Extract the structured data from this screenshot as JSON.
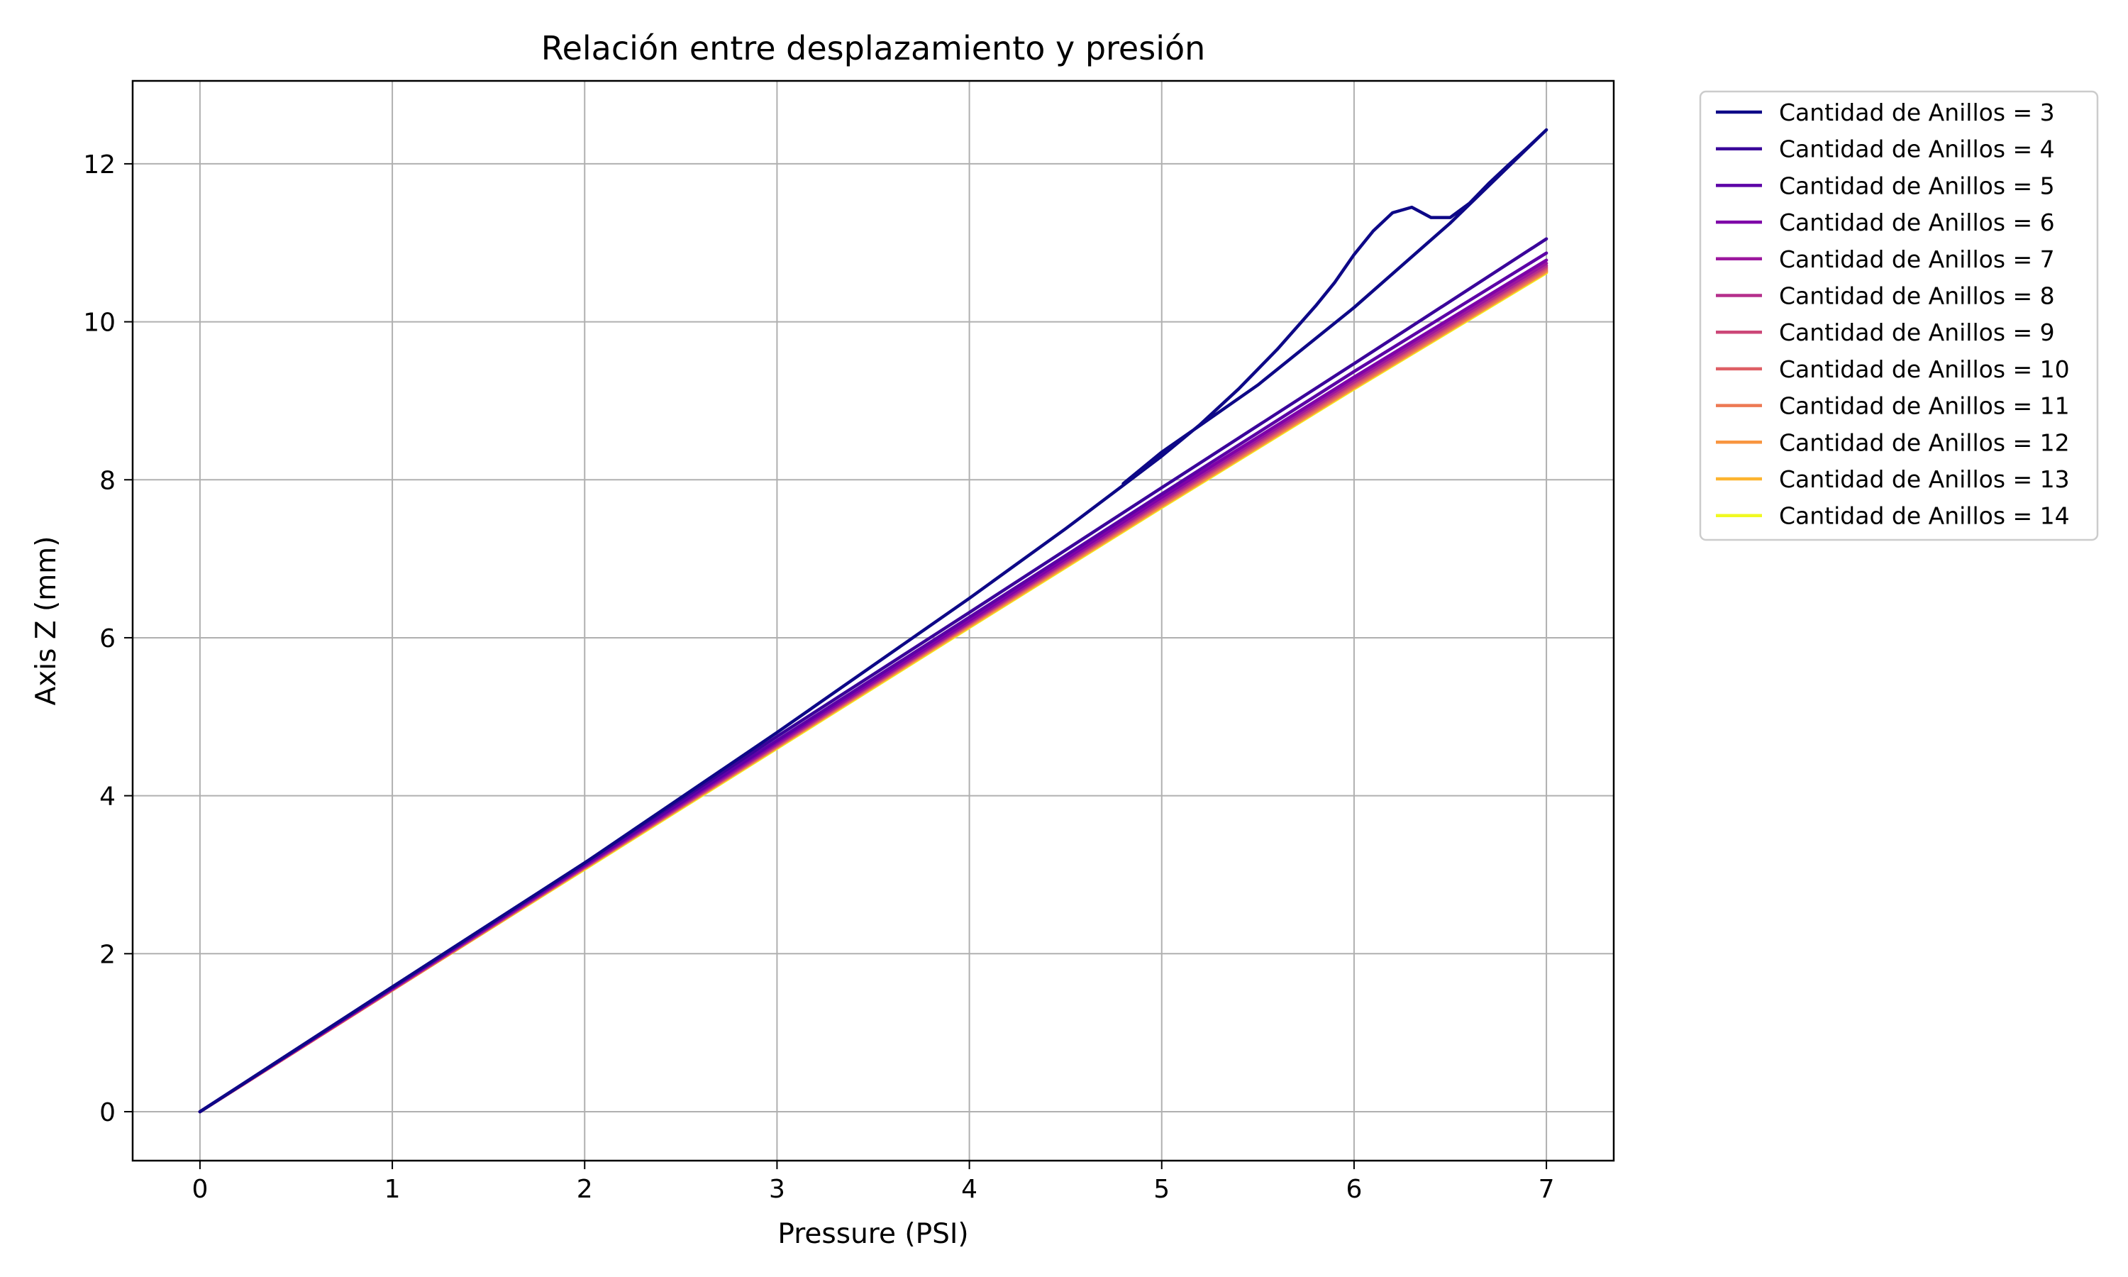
{
  "chart_data": {
    "type": "line",
    "title": "Relación entre desplazamiento y presión",
    "xlabel": "Pressure (PSI)",
    "ylabel": "Axis Z (mm)",
    "xlim": [
      -0.35,
      7.35
    ],
    "ylim": [
      -0.62,
      13.05
    ],
    "xticks": [
      0,
      1,
      2,
      3,
      4,
      5,
      6,
      7
    ],
    "yticks": [
      0,
      2,
      4,
      6,
      8,
      10,
      12
    ],
    "grid": true,
    "legend_position": "outside-top-right",
    "series": [
      {
        "name": "Cantidad de Anillos = 3",
        "color": "#0d0887",
        "x": [
          0,
          1,
          2,
          3,
          4,
          4.5,
          4.8,
          5.0,
          5.2,
          5.4,
          5.6,
          5.8,
          5.9,
          6.0,
          6.1,
          6.2,
          6.3,
          6.4,
          6.5,
          6.6,
          6.7,
          6.8,
          6.9,
          7.0
        ],
        "y": [
          0,
          1.58,
          3.15,
          4.8,
          6.5,
          7.38,
          7.93,
          8.3,
          8.7,
          9.15,
          9.65,
          10.2,
          10.5,
          10.85,
          11.15,
          11.38,
          11.45,
          11.32,
          11.32,
          11.5,
          11.75,
          11.98,
          12.2,
          12.43
        ],
        "return_x": [
          7.0,
          6.5,
          6.0,
          5.5,
          5.0,
          4.8
        ],
        "return_y": [
          12.43,
          11.25,
          10.18,
          9.2,
          8.35,
          7.95
        ]
      },
      {
        "name": "Cantidad de Anillos = 4",
        "color": "#3a049a",
        "x": [
          0,
          1,
          2,
          3,
          4,
          5,
          6,
          7
        ],
        "y": [
          0,
          1.58,
          3.15,
          4.75,
          6.32,
          7.9,
          9.47,
          11.05
        ]
      },
      {
        "name": "Cantidad de Anillos = 5",
        "color": "#5c01a6",
        "x": [
          0,
          1,
          2,
          3,
          4,
          5,
          6,
          7
        ],
        "y": [
          0,
          1.57,
          3.13,
          4.7,
          6.26,
          7.82,
          9.37,
          10.87
        ]
      },
      {
        "name": "Cantidad de Anillos = 6",
        "color": "#7e03a8",
        "x": [
          0,
          1,
          2,
          3,
          4,
          5,
          6,
          7
        ],
        "y": [
          0,
          1.56,
          3.12,
          4.68,
          6.22,
          7.78,
          9.3,
          10.78
        ]
      },
      {
        "name": "Cantidad de Anillos = 7",
        "color": "#9c179e",
        "x": [
          0,
          1,
          2,
          3,
          4,
          5,
          6,
          7
        ],
        "y": [
          0,
          1.56,
          3.11,
          4.66,
          6.2,
          7.75,
          9.27,
          10.74
        ]
      },
      {
        "name": "Cantidad de Anillos = 8",
        "color": "#b52f8c",
        "x": [
          0,
          1,
          2,
          3,
          4,
          5,
          6,
          7
        ],
        "y": [
          0,
          1.55,
          3.1,
          4.65,
          6.19,
          7.73,
          9.24,
          10.71
        ]
      },
      {
        "name": "Cantidad de Anillos = 9",
        "color": "#cc4778",
        "x": [
          0,
          1,
          2,
          3,
          4,
          5,
          6,
          7
        ],
        "y": [
          0,
          1.55,
          3.1,
          4.64,
          6.18,
          7.71,
          9.22,
          10.69
        ]
      },
      {
        "name": "Cantidad de Anillos = 10",
        "color": "#de5f65",
        "x": [
          0,
          1,
          2,
          3,
          4,
          5,
          6,
          7
        ],
        "y": [
          0,
          1.55,
          3.09,
          4.63,
          6.17,
          7.7,
          9.2,
          10.67
        ]
      },
      {
        "name": "Cantidad de Anillos = 11",
        "color": "#ed7953",
        "x": [
          0,
          1,
          2,
          3,
          4,
          5,
          6,
          7
        ],
        "y": [
          0,
          1.54,
          3.09,
          4.62,
          6.16,
          7.68,
          9.18,
          10.65
        ]
      },
      {
        "name": "Cantidad de Anillos = 12",
        "color": "#f89540",
        "x": [
          0,
          1,
          2,
          3,
          4,
          5,
          6,
          7
        ],
        "y": [
          0,
          1.54,
          3.08,
          4.62,
          6.15,
          7.67,
          9.17,
          10.64
        ]
      },
      {
        "name": "Cantidad de Anillos = 13",
        "color": "#fdb42f",
        "x": [
          0,
          1,
          2,
          3,
          4,
          5,
          6,
          7
        ],
        "y": [
          0,
          1.54,
          3.08,
          4.61,
          6.14,
          7.66,
          9.16,
          10.63
        ]
      },
      {
        "name": "Cantidad de Anillos = 14",
        "color": "#f0f921",
        "x": [
          0,
          1,
          2,
          3,
          4,
          5,
          6,
          7
        ],
        "y": [
          0,
          1.54,
          3.07,
          4.6,
          6.13,
          7.65,
          9.15,
          10.62
        ]
      }
    ]
  }
}
